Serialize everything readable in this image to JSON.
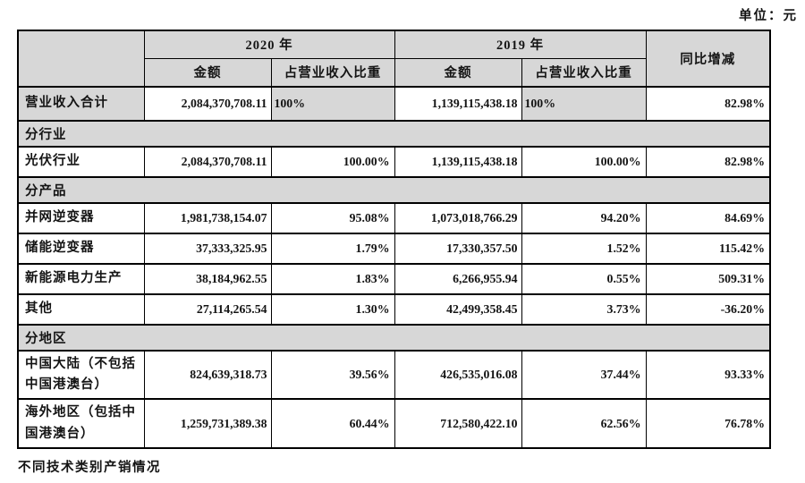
{
  "page": {
    "unit_label": "单位：元",
    "footer_note": "不同技术类别产销情况"
  },
  "colors": {
    "header_fill": "#d7d7d7",
    "border": "#000000",
    "text": "#141414"
  },
  "table": {
    "header": {
      "year_2020": "2020 年",
      "year_2019": "2019 年",
      "amount_2020": "金额",
      "share_2020": "占营业收入比重",
      "amount_2019": "金额",
      "share_2019": "占营业收入比重",
      "yoy": "同比增减"
    },
    "rows": [
      {
        "type": "total",
        "label": "营业收入合计",
        "amount_2020": "2,084,370,708.11",
        "share_2020": "100%",
        "amount_2019": "1,139,115,438.18",
        "share_2019": "100%",
        "yoy": "82.98%"
      },
      {
        "type": "section",
        "label": "分行业"
      },
      {
        "type": "data",
        "label": "光伏行业",
        "amount_2020": "2,084,370,708.11",
        "share_2020": "100.00%",
        "amount_2019": "1,139,115,438.18",
        "share_2019": "100.00%",
        "yoy": "82.98%"
      },
      {
        "type": "section",
        "label": "分产品"
      },
      {
        "type": "data",
        "label": "并网逆变器",
        "amount_2020": "1,981,738,154.07",
        "share_2020": "95.08%",
        "amount_2019": "1,073,018,766.29",
        "share_2019": "94.20%",
        "yoy": "84.69%"
      },
      {
        "type": "data",
        "label": "储能逆变器",
        "amount_2020": "37,333,325.95",
        "share_2020": "1.79%",
        "amount_2019": "17,330,357.50",
        "share_2019": "1.52%",
        "yoy": "115.42%"
      },
      {
        "type": "data",
        "label": "新能源电力生产",
        "amount_2020": "38,184,962.55",
        "share_2020": "1.83%",
        "amount_2019": "6,266,955.94",
        "share_2019": "0.55%",
        "yoy": "509.31%"
      },
      {
        "type": "data",
        "label": "其他",
        "amount_2020": "27,114,265.54",
        "share_2020": "1.30%",
        "amount_2019": "42,499,358.45",
        "share_2019": "3.73%",
        "yoy": "-36.20%"
      },
      {
        "type": "section",
        "label": "分地区"
      },
      {
        "type": "data",
        "label": "中国大陆（不包括中国港澳台）",
        "amount_2020": "824,639,318.73",
        "share_2020": "39.56%",
        "amount_2019": "426,535,016.08",
        "share_2019": "37.44%",
        "yoy": "93.33%"
      },
      {
        "type": "data",
        "label": "海外地区（包括中国港澳台）",
        "amount_2020": "1,259,731,389.38",
        "share_2020": "60.44%",
        "amount_2019": "712,580,422.10",
        "share_2019": "62.56%",
        "yoy": "76.78%"
      }
    ]
  }
}
